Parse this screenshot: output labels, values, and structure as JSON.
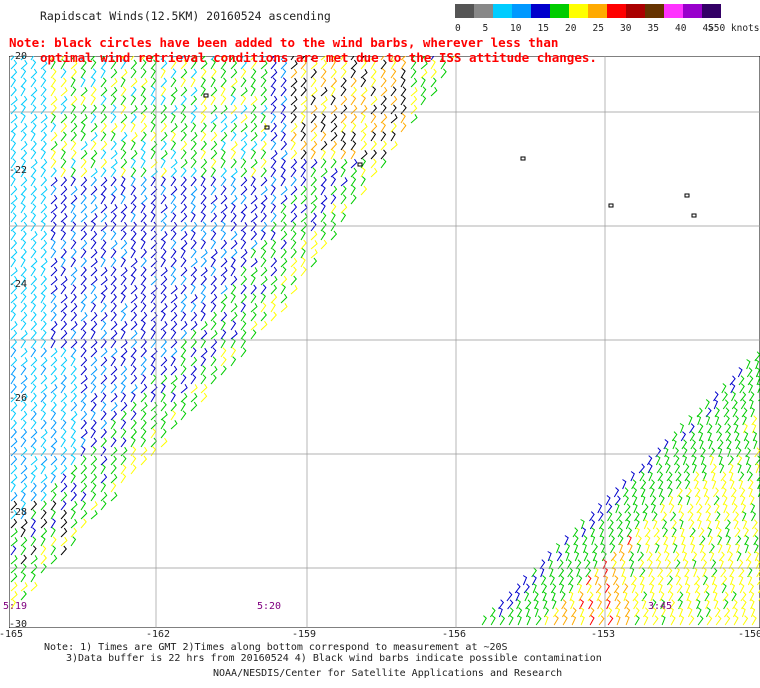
{
  "title": "Rapidscat Winds(12.5KM) 20160524 ascending",
  "note_line1": "Note: black circles have been added to the wind barbs, wherever less than",
  "note_line2": "optimal wind retrieval conditions are met due to the ISS attitude changes.",
  "legend": {
    "labels": [
      "0",
      "5",
      "10",
      "15",
      "20",
      "25",
      "30",
      "35",
      "40",
      "45",
      ">50 knots"
    ],
    "colors": [
      "#555555",
      "#888888",
      "#00ccff",
      "#0099ff",
      "#0000cc",
      "#00cc00",
      "#ffff00",
      "#ffaa00",
      "#ff0000",
      "#aa0000",
      "#663300",
      "#ff33ff",
      "#9900cc",
      "#330066"
    ]
  },
  "map": {
    "lat_labels": [
      "-20",
      "-22",
      "-24",
      "-26",
      "-28",
      "-30"
    ],
    "lon_labels": [
      "-165",
      "-162",
      "-159",
      "-156",
      "-153",
      "-150"
    ],
    "pass_times": [
      "5:19",
      "5:20",
      "3:45"
    ]
  },
  "footer": {
    "line1": "Note: 1) Times are GMT 2)Times along bottom correspond to measurement at ~20S",
    "line2": "3)Data buffer is 22 hrs from 20160524 4) Black wind barbs indicate possible contamination",
    "line3": "NOAA/NESDIS/Center for Satellite Applications and Research"
  }
}
